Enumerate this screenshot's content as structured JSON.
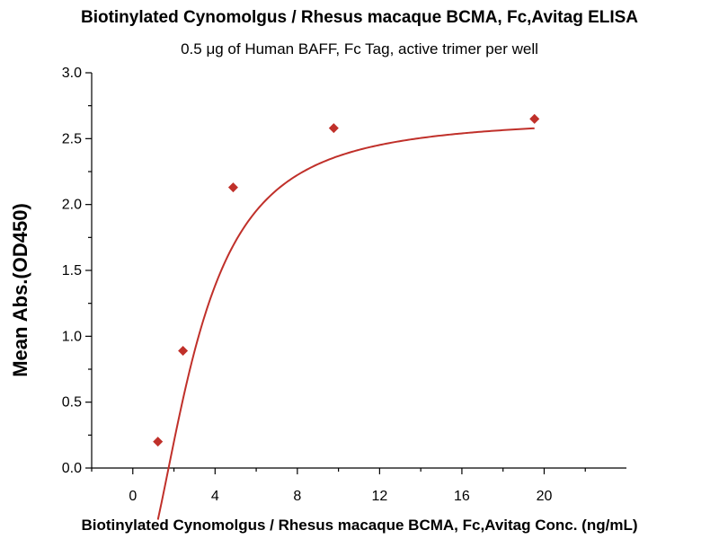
{
  "chart_data": {
    "type": "scatter",
    "title": "Biotinylated Cynomolgus / Rhesus macaque BCMA, Fc,Avitag ELISA",
    "subtitle": "0.5 μg of Human BAFF, Fc Tag, active trimer per well",
    "xlabel": "Biotinylated Cynomolgus / Rhesus macaque BCMA, Fc,Avitag Conc. (ng/mL)",
    "ylabel": "Mean Abs.(OD450)",
    "xlim": [
      -2,
      24
    ],
    "ylim": [
      0,
      3.0
    ],
    "x_ticks": [
      0,
      4,
      8,
      12,
      16,
      20
    ],
    "y_ticks": [
      0.0,
      0.5,
      1.0,
      1.5,
      2.0,
      2.5,
      3.0
    ],
    "x_tick_labels": [
      "0",
      "4",
      "8",
      "12",
      "16",
      "20"
    ],
    "y_tick_labels": [
      "0.0",
      "0.5",
      "1.0",
      "1.5",
      "2.0",
      "2.5",
      "3.0"
    ],
    "grid": false,
    "legend": "none",
    "series": [
      {
        "marker": "diamond",
        "color": "#c0302a",
        "x": [
          1.22,
          2.44,
          4.88,
          9.77,
          19.53
        ],
        "y": [
          0.2,
          0.89,
          2.13,
          2.58,
          2.65
        ],
        "fit": "4PL",
        "fit_params": {
          "bottom": -0.9,
          "top": 2.66,
          "ec50": 2.99,
          "hill": 2.0
        }
      }
    ]
  }
}
